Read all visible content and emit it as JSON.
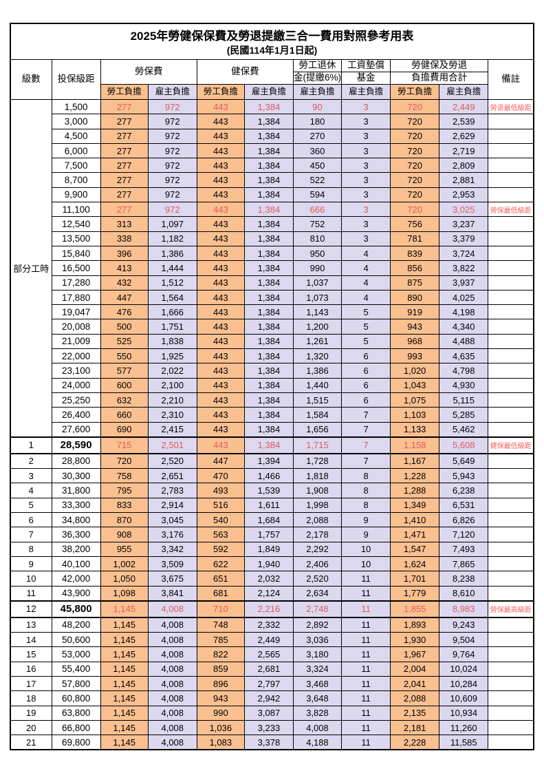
{
  "title": "2025年勞健保保費及勞退提繳三合一費用對照參考用表",
  "subtitle": "(民國114年1月1日起)",
  "header": {
    "level": "級數",
    "bracket": "投保級距",
    "labor": "勞保費",
    "health": "健保費",
    "pension_line1": "勞工退休",
    "pension_line2": "金(提繳6%)",
    "wage_line1": "工資墊償",
    "wage_line2": "基金",
    "total_line1": "勞健保及勞退",
    "total_line2": "負擔費用合計",
    "remark": "備註",
    "employee": "勞工負擔",
    "employer": "雇主負擔"
  },
  "part_time_label": "部分工時",
  "colors": {
    "employee_col_bg": "#FAC090",
    "employer_col_bg": "#DCD8F0",
    "highlight_text": "#E05A5A",
    "remark_text": "#F75E5E",
    "border": "#000000"
  },
  "rows": [
    {
      "level": "",
      "bracket": "1,500",
      "values": [
        "277",
        "972",
        "443",
        "1,384",
        "90",
        "3",
        "720",
        "2,449"
      ],
      "remark": "勞退最低級距",
      "highlight": true
    },
    {
      "level": "",
      "bracket": "3,000",
      "values": [
        "277",
        "972",
        "443",
        "1,384",
        "180",
        "3",
        "720",
        "2,539"
      ],
      "remark": ""
    },
    {
      "level": "",
      "bracket": "4,500",
      "values": [
        "277",
        "972",
        "443",
        "1,384",
        "270",
        "3",
        "720",
        "2,629"
      ],
      "remark": ""
    },
    {
      "level": "",
      "bracket": "6,000",
      "values": [
        "277",
        "972",
        "443",
        "1,384",
        "360",
        "3",
        "720",
        "2,719"
      ],
      "remark": ""
    },
    {
      "level": "",
      "bracket": "7,500",
      "values": [
        "277",
        "972",
        "443",
        "1,384",
        "450",
        "3",
        "720",
        "2,809"
      ],
      "remark": ""
    },
    {
      "level": "",
      "bracket": "8,700",
      "values": [
        "277",
        "972",
        "443",
        "1,384",
        "522",
        "3",
        "720",
        "2,881"
      ],
      "remark": ""
    },
    {
      "level": "",
      "bracket": "9,900",
      "values": [
        "277",
        "972",
        "443",
        "1,384",
        "594",
        "3",
        "720",
        "2,953"
      ],
      "remark": ""
    },
    {
      "level": "",
      "bracket": "11,100",
      "values": [
        "277",
        "972",
        "443",
        "1,384",
        "666",
        "3",
        "720",
        "3,025"
      ],
      "remark": "勞保最低級距",
      "highlight": true
    },
    {
      "level": "",
      "bracket": "12,540",
      "values": [
        "313",
        "1,097",
        "443",
        "1,384",
        "752",
        "3",
        "756",
        "3,237"
      ],
      "remark": ""
    },
    {
      "level": "",
      "bracket": "13,500",
      "values": [
        "338",
        "1,182",
        "443",
        "1,384",
        "810",
        "3",
        "781",
        "3,379"
      ],
      "remark": ""
    },
    {
      "level": "",
      "bracket": "15,840",
      "values": [
        "396",
        "1,386",
        "443",
        "1,384",
        "950",
        "4",
        "839",
        "3,724"
      ],
      "remark": ""
    },
    {
      "level": "",
      "bracket": "16,500",
      "values": [
        "413",
        "1,444",
        "443",
        "1,384",
        "990",
        "4",
        "856",
        "3,822"
      ],
      "remark": ""
    },
    {
      "level": "",
      "bracket": "17,280",
      "values": [
        "432",
        "1,512",
        "443",
        "1,384",
        "1,037",
        "4",
        "875",
        "3,937"
      ],
      "remark": ""
    },
    {
      "level": "",
      "bracket": "17,880",
      "values": [
        "447",
        "1,564",
        "443",
        "1,384",
        "1,073",
        "4",
        "890",
        "4,025"
      ],
      "remark": ""
    },
    {
      "level": "",
      "bracket": "19,047",
      "values": [
        "476",
        "1,666",
        "443",
        "1,384",
        "1,143",
        "5",
        "919",
        "4,198"
      ],
      "remark": ""
    },
    {
      "level": "",
      "bracket": "20,008",
      "values": [
        "500",
        "1,751",
        "443",
        "1,384",
        "1,200",
        "5",
        "943",
        "4,340"
      ],
      "remark": ""
    },
    {
      "level": "",
      "bracket": "21,009",
      "values": [
        "525",
        "1,838",
        "443",
        "1,384",
        "1,261",
        "5",
        "968",
        "4,488"
      ],
      "remark": ""
    },
    {
      "level": "",
      "bracket": "22,000",
      "values": [
        "550",
        "1,925",
        "443",
        "1,384",
        "1,320",
        "6",
        "993",
        "4,635"
      ],
      "remark": ""
    },
    {
      "level": "",
      "bracket": "23,100",
      "values": [
        "577",
        "2,022",
        "443",
        "1,384",
        "1,386",
        "6",
        "1,020",
        "4,798"
      ],
      "remark": ""
    },
    {
      "level": "",
      "bracket": "24,000",
      "values": [
        "600",
        "2,100",
        "443",
        "1,384",
        "1,440",
        "6",
        "1,043",
        "4,930"
      ],
      "remark": ""
    },
    {
      "level": "",
      "bracket": "25,250",
      "values": [
        "632",
        "2,210",
        "443",
        "1,384",
        "1,515",
        "6",
        "1,075",
        "5,115"
      ],
      "remark": ""
    },
    {
      "level": "",
      "bracket": "26,400",
      "values": [
        "660",
        "2,310",
        "443",
        "1,384",
        "1,584",
        "7",
        "1,103",
        "5,285"
      ],
      "remark": ""
    },
    {
      "level": "",
      "bracket": "27,600",
      "values": [
        "690",
        "2,415",
        "443",
        "1,384",
        "1,656",
        "7",
        "1,133",
        "5,462"
      ],
      "remark": ""
    },
    {
      "level": "1",
      "bracket": "28,590",
      "values": [
        "715",
        "2,501",
        "443",
        "1,384",
        "1,715",
        "7",
        "1,158",
        "5,608"
      ],
      "remark": "健保最低級距",
      "highlight": true,
      "frame": true
    },
    {
      "level": "2",
      "bracket": "28,800",
      "values": [
        "720",
        "2,520",
        "447",
        "1,394",
        "1,728",
        "7",
        "1,167",
        "5,649"
      ],
      "remark": ""
    },
    {
      "level": "3",
      "bracket": "30,300",
      "values": [
        "758",
        "2,651",
        "470",
        "1,466",
        "1,818",
        "8",
        "1,228",
        "5,943"
      ],
      "remark": ""
    },
    {
      "level": "4",
      "bracket": "31,800",
      "values": [
        "795",
        "2,783",
        "493",
        "1,539",
        "1,908",
        "8",
        "1,288",
        "6,238"
      ],
      "remark": ""
    },
    {
      "level": "5",
      "bracket": "33,300",
      "values": [
        "833",
        "2,914",
        "516",
        "1,611",
        "1,998",
        "8",
        "1,349",
        "6,531"
      ],
      "remark": ""
    },
    {
      "level": "6",
      "bracket": "34,800",
      "values": [
        "870",
        "3,045",
        "540",
        "1,684",
        "2,088",
        "9",
        "1,410",
        "6,826"
      ],
      "remark": ""
    },
    {
      "level": "7",
      "bracket": "36,300",
      "values": [
        "908",
        "3,176",
        "563",
        "1,757",
        "2,178",
        "9",
        "1,471",
        "7,120"
      ],
      "remark": ""
    },
    {
      "level": "8",
      "bracket": "38,200",
      "values": [
        "955",
        "3,342",
        "592",
        "1,849",
        "2,292",
        "10",
        "1,547",
        "7,493"
      ],
      "remark": ""
    },
    {
      "level": "9",
      "bracket": "40,100",
      "values": [
        "1,002",
        "3,509",
        "622",
        "1,940",
        "2,406",
        "10",
        "1,624",
        "7,865"
      ],
      "remark": ""
    },
    {
      "level": "10",
      "bracket": "42,000",
      "values": [
        "1,050",
        "3,675",
        "651",
        "2,032",
        "2,520",
        "11",
        "1,701",
        "8,238"
      ],
      "remark": ""
    },
    {
      "level": "11",
      "bracket": "43,900",
      "values": [
        "1,098",
        "3,841",
        "681",
        "2,124",
        "2,634",
        "11",
        "1,779",
        "8,610"
      ],
      "remark": ""
    },
    {
      "level": "12",
      "bracket": "45,800",
      "values": [
        "1,145",
        "4,008",
        "710",
        "2,216",
        "2,748",
        "11",
        "1,855",
        "8,983"
      ],
      "remark": "勞保最高級距",
      "highlight": true,
      "frame": true
    },
    {
      "level": "13",
      "bracket": "48,200",
      "values": [
        "1,145",
        "4,008",
        "748",
        "2,332",
        "2,892",
        "11",
        "1,893",
        "9,243"
      ],
      "remark": ""
    },
    {
      "level": "14",
      "bracket": "50,600",
      "values": [
        "1,145",
        "4,008",
        "785",
        "2,449",
        "3,036",
        "11",
        "1,930",
        "9,504"
      ],
      "remark": ""
    },
    {
      "level": "15",
      "bracket": "53,000",
      "values": [
        "1,145",
        "4,008",
        "822",
        "2,565",
        "3,180",
        "11",
        "1,967",
        "9,764"
      ],
      "remark": ""
    },
    {
      "level": "16",
      "bracket": "55,400",
      "values": [
        "1,145",
        "4,008",
        "859",
        "2,681",
        "3,324",
        "11",
        "2,004",
        "10,024"
      ],
      "remark": ""
    },
    {
      "level": "17",
      "bracket": "57,800",
      "values": [
        "1,145",
        "4,008",
        "896",
        "2,797",
        "3,468",
        "11",
        "2,041",
        "10,284"
      ],
      "remark": ""
    },
    {
      "level": "18",
      "bracket": "60,800",
      "values": [
        "1,145",
        "4,008",
        "943",
        "2,942",
        "3,648",
        "11",
        "2,088",
        "10,609"
      ],
      "remark": ""
    },
    {
      "level": "19",
      "bracket": "63,800",
      "values": [
        "1,145",
        "4,008",
        "990",
        "3,087",
        "3,828",
        "11",
        "2,135",
        "10,934"
      ],
      "remark": ""
    },
    {
      "level": "20",
      "bracket": "66,800",
      "values": [
        "1,145",
        "4,008",
        "1,036",
        "3,233",
        "4,008",
        "11",
        "2,181",
        "11,260"
      ],
      "remark": ""
    },
    {
      "level": "21",
      "bracket": "69,800",
      "values": [
        "1,145",
        "4,008",
        "1,083",
        "3,378",
        "4,188",
        "11",
        "2,228",
        "11,585"
      ],
      "remark": ""
    }
  ]
}
